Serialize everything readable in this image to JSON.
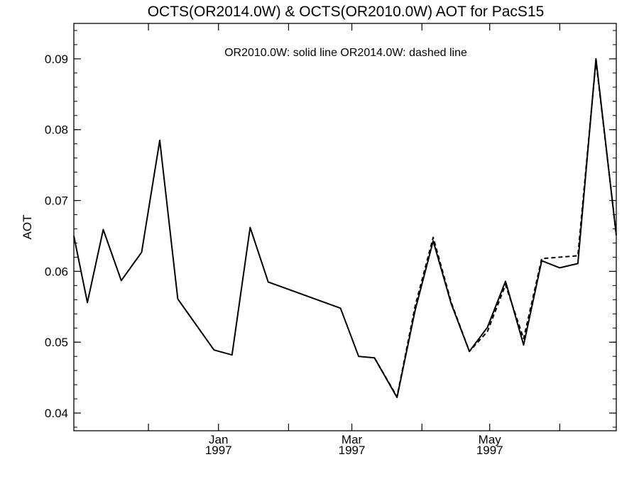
{
  "chart_data": {
    "type": "line",
    "title": "OCTS(OR2014.0W) & OCTS(OR2010.0W)  AOT for PacS15",
    "annotation": "OR2010.0W: solid line   OR2014.0W: dashed line",
    "ylabel": "AOT",
    "xlabel": "",
    "ylim": [
      0.0375,
      0.095
    ],
    "xlim": [
      "1996-10-29",
      "1997-06-26"
    ],
    "y_ticks": [
      "0.04",
      "0.05",
      "0.06",
      "0.07",
      "0.08",
      "0.09"
    ],
    "x_ticks": [
      {
        "date": "1997-01-01",
        "label": "Jan",
        "year": "1997"
      },
      {
        "date": "1997-03-01",
        "label": "Mar",
        "year": "1997"
      },
      {
        "date": "1997-05-01",
        "label": "May",
        "year": "1997"
      }
    ],
    "x_minor_tick_dates": [
      "1996-12-01",
      "1997-02-01",
      "1997-04-01",
      "1997-06-01"
    ],
    "grid": false,
    "series": [
      {
        "name": "OR2010.0W",
        "style": "solid",
        "color": "#000000",
        "points": [
          [
            "1996-10-29",
            0.065
          ],
          [
            "1996-11-04",
            0.0556
          ],
          [
            "1996-11-11",
            0.0659
          ],
          [
            "1996-11-19",
            0.0587
          ],
          [
            "1996-11-28",
            0.0627
          ],
          [
            "1996-12-06",
            0.0785
          ],
          [
            "1996-12-14",
            0.0561
          ],
          [
            "1996-12-30",
            0.0489
          ],
          [
            "1997-01-07",
            0.0482
          ],
          [
            "1997-01-15",
            0.0662
          ],
          [
            "1997-01-23",
            0.0585
          ],
          [
            "1997-02-24",
            0.0548
          ],
          [
            "1997-03-04",
            0.048
          ],
          [
            "1997-03-11",
            0.0478
          ],
          [
            "1997-03-21",
            0.0422
          ],
          [
            "1997-03-29",
            0.0545
          ],
          [
            "1997-04-06",
            0.0643
          ],
          [
            "1997-04-14",
            0.0554
          ],
          [
            "1997-04-22",
            0.0487
          ],
          [
            "1997-04-30",
            0.0521
          ],
          [
            "1997-05-08",
            0.0586
          ],
          [
            "1997-05-16",
            0.0496
          ],
          [
            "1997-05-24",
            0.0615
          ],
          [
            "1997-06-01",
            0.0605
          ],
          [
            "1997-06-09",
            0.0611
          ],
          [
            "1997-06-17",
            0.09
          ],
          [
            "1997-06-26",
            0.0651
          ]
        ]
      },
      {
        "name": "OR2014.0W",
        "style": "dashed",
        "color": "#000000",
        "points": [
          [
            "1997-03-11",
            0.0478
          ],
          [
            "1997-03-21",
            0.0423
          ],
          [
            "1997-03-29",
            0.0551
          ],
          [
            "1997-04-06",
            0.0648
          ],
          [
            "1997-04-14",
            0.0556
          ],
          [
            "1997-04-22",
            0.0487
          ],
          [
            "1997-04-30",
            0.0515
          ],
          [
            "1997-05-08",
            0.0581
          ],
          [
            "1997-05-16",
            0.0505
          ],
          [
            "1997-05-24",
            0.0618
          ],
          [
            "1997-06-09",
            0.0622
          ],
          [
            "1997-06-17",
            0.0897
          ],
          [
            "1997-06-26",
            0.0652
          ]
        ]
      }
    ]
  }
}
